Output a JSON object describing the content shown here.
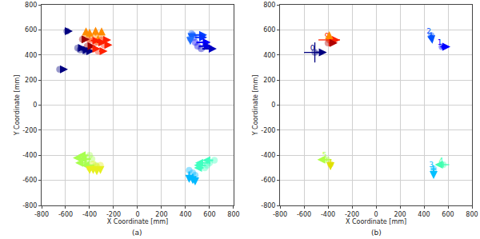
{
  "chart_data": [
    {
      "type": "quiver",
      "title": "(a)",
      "x_label": "X Coordinate [mm]",
      "y_label": "Y Coordinate [mm]",
      "xlim": [
        -800,
        800
      ],
      "xticks": [
        -800,
        -600,
        -400,
        -200,
        0,
        200,
        400,
        600,
        800
      ],
      "ylim": [
        -800,
        800
      ],
      "yticks": [
        -800,
        -600,
        -400,
        -200,
        0,
        200,
        400,
        600,
        800
      ],
      "grid": true,
      "marker": "circle",
      "x": [
        -650,
        -480,
        -440,
        -500,
        -590,
        -460,
        -420,
        -400,
        -350,
        -300,
        -430,
        -330,
        -400,
        -350,
        -300,
        -380,
        -330,
        -280,
        460,
        470,
        480,
        500,
        530,
        450,
        440,
        -400,
        -380,
        -420,
        -350,
        -450,
        -370,
        -340,
        -310,
        -400,
        430,
        460,
        480,
        600,
        580,
        640,
        560
      ],
      "y": [
        285,
        440,
        430,
        455,
        590,
        525,
        470,
        530,
        545,
        550,
        560,
        500,
        515,
        500,
        520,
        450,
        430,
        480,
        560,
        540,
        500,
        470,
        450,
        570,
        530,
        -400,
        -430,
        -460,
        -480,
        -420,
        -470,
        -490,
        -480,
        -500,
        -520,
        -540,
        -560,
        -460,
        -480,
        -440,
        -500
      ],
      "u": [
        70,
        90,
        80,
        70,
        50,
        60,
        70,
        0,
        0,
        0,
        0,
        0,
        90,
        90,
        80,
        70,
        80,
        70,
        120,
        110,
        130,
        120,
        130,
        0,
        0,
        -100,
        -110,
        -100,
        -120,
        -90,
        0,
        0,
        0,
        0,
        0,
        0,
        0,
        -120,
        -110,
        -100,
        -90
      ],
      "v": [
        0,
        0,
        0,
        0,
        0,
        0,
        0,
        80,
        80,
        70,
        60,
        60,
        0,
        0,
        0,
        0,
        0,
        0,
        0,
        0,
        0,
        0,
        0,
        -60,
        -50,
        0,
        0,
        0,
        0,
        0,
        -80,
        -70,
        -70,
        -50,
        -100,
        -90,
        -80,
        0,
        0,
        0,
        0
      ],
      "colors": [
        "#000080",
        "#000080",
        "#000080",
        "#000080",
        "#000080",
        "#9f0000",
        "#9f0000",
        "#ff8c00",
        "#ff8c00",
        "#ff8c00",
        "#ff8c00",
        "#ff8c00",
        "#ff2000",
        "#ff2000",
        "#ff2000",
        "#ff2000",
        "#ff2000",
        "#ff2000",
        "#0040ff",
        "#0030ff",
        "#0000ff",
        "#0000e0",
        "#0000c0",
        "#1060ff",
        "#2070ff",
        "#a8ff50",
        "#a8ff50",
        "#a8ff50",
        "#a8ff50",
        "#a8ff50",
        "#e6f020",
        "#e6f020",
        "#e6f020",
        "#e6f020",
        "#00b8ff",
        "#00b8ff",
        "#00b8ff",
        "#40ffc0",
        "#40ffc0",
        "#40ffc0",
        "#40ffc0"
      ]
    },
    {
      "type": "quiver",
      "title": "(b)",
      "x_label": "X Coordinate [mm]",
      "y_label": "Y Coordinate [mm]",
      "xlim": [
        -800,
        800
      ],
      "xticks": [
        -800,
        -600,
        -400,
        -200,
        0,
        200,
        400,
        600,
        800
      ],
      "ylim": [
        -800,
        800
      ],
      "yticks": [
        -800,
        -600,
        -400,
        -200,
        0,
        200,
        400,
        600,
        800
      ],
      "grid": true,
      "marker": "circle",
      "x": [
        -510,
        -390,
        -390,
        -400,
        460,
        550,
        -410,
        -380,
        480,
        560
      ],
      "y": [
        420,
        520,
        530,
        495,
        555,
        465,
        -435,
        -470,
        -510,
        -475
      ],
      "u": [
        100,
        90,
        0,
        80,
        10,
        70,
        -80,
        0,
        0,
        -70
      ],
      "v": [
        0,
        0,
        60,
        0,
        -65,
        0,
        0,
        -50,
        -80,
        0
      ],
      "x_err": [
        90,
        90,
        null,
        null,
        15,
        15,
        40,
        20,
        20,
        50
      ],
      "y_err": [
        80,
        50,
        null,
        null,
        25,
        15,
        15,
        40,
        30,
        20
      ],
      "labels": [
        "0",
        "9",
        null,
        null,
        "2",
        "1",
        "5",
        null,
        "3",
        "4"
      ],
      "colors": [
        "#000080",
        "#ff2000",
        "#ff8c00",
        "#b00000",
        "#0050ff",
        "#0000ff",
        "#b0ff46",
        "#e0e000",
        "#00c0ff",
        "#40ffb0"
      ]
    }
  ]
}
